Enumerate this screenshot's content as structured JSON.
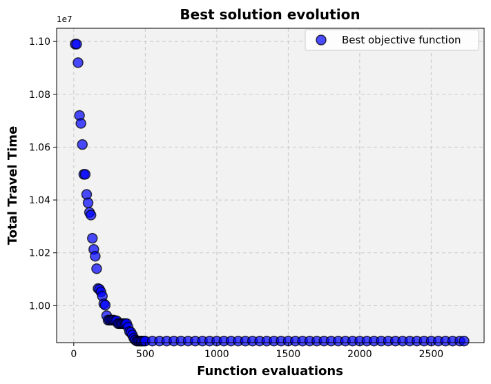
{
  "chart_data": {
    "type": "scatter",
    "title": "Best solution evolution",
    "xlabel": "Function evaluations",
    "ylabel": "Total Travel Time",
    "y_offset_label": "1e7",
    "xlim": [
      -120,
      2870
    ],
    "ylim": [
      9860000.0,
      11050000.0
    ],
    "x_ticks": [
      0,
      500,
      1000,
      1500,
      2000,
      2500
    ],
    "x_tick_labels": [
      "0",
      "500",
      "1000",
      "1500",
      "2000",
      "2500"
    ],
    "y_ticks": [
      10000000.0,
      10200000.0,
      10400000.0,
      10600000.0,
      10800000.0,
      11000000.0
    ],
    "y_tick_labels": [
      "1.00",
      "1.02",
      "1.04",
      "1.06",
      "1.08",
      "1.10"
    ],
    "grid": true,
    "legend_position": "top-right",
    "colors": {
      "marker_fill": "#0000ff",
      "marker_edge": "#000000",
      "plot_background": "#f2f2f2",
      "grid": "#c8c8c8"
    },
    "series": [
      {
        "name": "Best objective function",
        "x": [
          10,
          20,
          30,
          40,
          50,
          60,
          70,
          80,
          90,
          100,
          110,
          120,
          130,
          140,
          150,
          160,
          170,
          180,
          190,
          200,
          210,
          220,
          230,
          240,
          250,
          260,
          270,
          280,
          290,
          300,
          310,
          320,
          330,
          340,
          350,
          360,
          370,
          380,
          390,
          400,
          410,
          420,
          430,
          440,
          450,
          460,
          470,
          480,
          490,
          500,
          550,
          600,
          650,
          700,
          750,
          800,
          850,
          900,
          950,
          1000,
          1050,
          1100,
          1150,
          1200,
          1250,
          1300,
          1350,
          1400,
          1450,
          1500,
          1550,
          1600,
          1650,
          1700,
          1750,
          1800,
          1850,
          1900,
          1950,
          2000,
          2050,
          2100,
          2150,
          2200,
          2250,
          2300,
          2350,
          2400,
          2450,
          2500,
          2550,
          2600,
          2650,
          2700,
          2730
        ],
        "y": [
          10990000,
          10990000,
          10920000,
          10720000,
          10690000,
          10610000,
          10497000,
          10497000,
          10421000,
          10389000,
          10353000,
          10343000,
          10255000,
          10213000,
          10187000,
          10140000,
          10065000,
          10062000,
          10052000,
          10036000,
          10007000,
          10002000,
          9962000,
          9945000,
          9945000,
          9945000,
          9945000,
          9945000,
          9943000,
          9943000,
          9932000,
          9932000,
          9932000,
          9932000,
          9932000,
          9932000,
          9932000,
          9919000,
          9902000,
          9899000,
          9889000,
          9877000,
          9870000,
          9866000,
          9866000,
          9866000,
          9866000,
          9866000,
          9866000,
          9866000,
          9866000,
          9866000,
          9866000,
          9866000,
          9866000,
          9866000,
          9866000,
          9866000,
          9866000,
          9866000,
          9866000,
          9866000,
          9866000,
          9866000,
          9866000,
          9866000,
          9866000,
          9866000,
          9866000,
          9866000,
          9866000,
          9866000,
          9866000,
          9866000,
          9866000,
          9866000,
          9866000,
          9866000,
          9866000,
          9866000,
          9866000,
          9866000,
          9866000,
          9866000,
          9866000,
          9866000,
          9866000,
          9866000,
          9866000,
          9866000,
          9866000,
          9866000,
          9866000,
          9866000,
          9866000
        ]
      }
    ]
  }
}
